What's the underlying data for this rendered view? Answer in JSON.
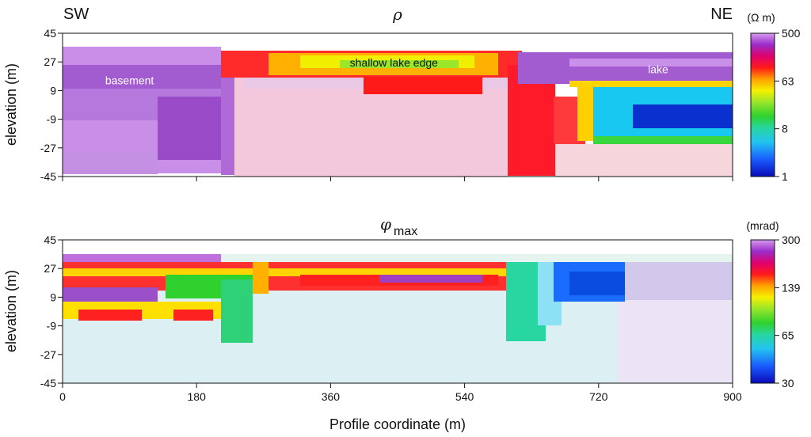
{
  "chart_data": [
    {
      "type": "heatmap",
      "title": "ρ",
      "corner_left": "SW",
      "corner_right": "NE",
      "ylabel": "elevation (m)",
      "xlabel": "",
      "xlim": [
        0,
        900
      ],
      "ylim": [
        -45,
        45
      ],
      "xticks": [
        0,
        180,
        360,
        540,
        720,
        900
      ],
      "yticks": [
        45,
        27,
        9,
        -9,
        -27,
        -45
      ],
      "colorbar": {
        "unit": "(Ω m)",
        "ticks": [
          "500",
          "63",
          "8",
          "1"
        ],
        "scale": "log",
        "range": [
          1,
          500
        ]
      },
      "annotations": [
        {
          "text": "basement",
          "x": 90,
          "y": 13,
          "color": "#ffffff"
        },
        {
          "text": "shallow lake edge",
          "x": 445,
          "y": 24,
          "color": "#111111"
        },
        {
          "text": "lake",
          "x": 800,
          "y": 20,
          "color": "#ffffff"
        }
      ]
    },
    {
      "type": "heatmap",
      "title": "φ",
      "title_subscript": "max",
      "ylabel": "elevation (m)",
      "xlabel": "Profile coordinate (m)",
      "xlim": [
        0,
        900
      ],
      "ylim": [
        -45,
        45
      ],
      "xticks": [
        0,
        180,
        360,
        540,
        720,
        900
      ],
      "yticks": [
        45,
        27,
        9,
        -9,
        -27,
        -45
      ],
      "colorbar": {
        "unit": "(mrad)",
        "ticks": [
          "300",
          "139",
          "65",
          "30"
        ],
        "scale": "log",
        "range": [
          30,
          300
        ]
      },
      "annotations": []
    }
  ]
}
